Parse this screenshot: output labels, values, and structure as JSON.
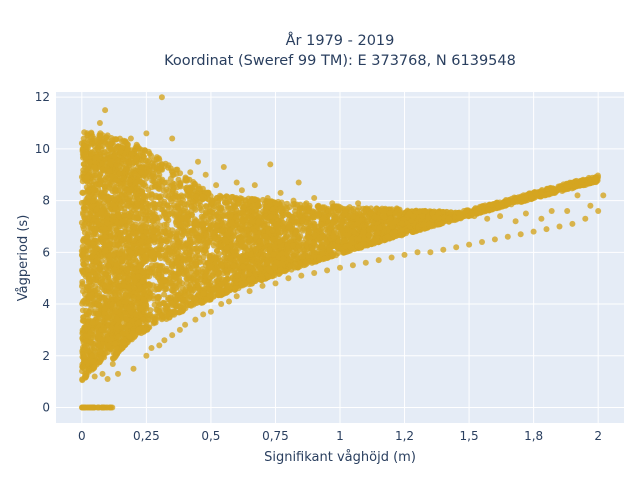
{
  "chart_data": {
    "type": "scatter",
    "title_lines": [
      "År 1979 - 2019",
      "Koordinat (Sweref 99 TM): E 373768, N 6139548"
    ],
    "xlabel": "Signifikant våghöjd (m)",
    "ylabel": "Vågperiod (s)",
    "xlim": [
      -0.1,
      2.1
    ],
    "ylim": [
      -0.6,
      12.2
    ],
    "x_ticks": [
      0,
      0.25,
      0.5,
      0.75,
      1,
      1.25,
      1.5,
      1.75,
      2
    ],
    "x_tick_labels": [
      "0",
      "0,25",
      "0,5",
      "0,75",
      "1",
      "1,2",
      "1,5",
      "1,8",
      "2"
    ],
    "y_ticks": [
      0,
      2,
      4,
      6,
      8,
      10,
      12
    ],
    "y_tick_labels": [
      "0",
      "2",
      "4",
      "6",
      "8",
      "10",
      "12"
    ],
    "grid": true,
    "marker_color": "#d4a520",
    "background_color": "#e5ecf6",
    "series": [
      {
        "points": [
          [
            0.01,
            1.5
          ],
          [
            0.02,
            2.3
          ],
          [
            0.02,
            6.6
          ],
          [
            0.03,
            8.6
          ],
          [
            0.03,
            4.7
          ],
          [
            0.04,
            2.0
          ],
          [
            0.05,
            9.3
          ],
          [
            0.05,
            1.2
          ],
          [
            0.06,
            7.2
          ],
          [
            0.06,
            10.0
          ],
          [
            0.07,
            10.5
          ],
          [
            0.07,
            11.0
          ],
          [
            0.08,
            1.3
          ],
          [
            0.08,
            3.0
          ],
          [
            0.09,
            9.6
          ],
          [
            0.09,
            11.5
          ],
          [
            0.1,
            1.1
          ],
          [
            0.1,
            8.0
          ],
          [
            0.11,
            10.2
          ],
          [
            0.12,
            4.0
          ],
          [
            0.13,
            7.7
          ],
          [
            0.14,
            1.3
          ],
          [
            0.15,
            9.9
          ],
          [
            0.16,
            2.5
          ],
          [
            0.17,
            9.5
          ],
          [
            0.18,
            5.0
          ],
          [
            0.19,
            10.4
          ],
          [
            0.2,
            1.5
          ],
          [
            0.21,
            3.6
          ],
          [
            0.22,
            10.0
          ],
          [
            0.23,
            9.1
          ],
          [
            0.25,
            2.0
          ],
          [
            0.25,
            10.6
          ],
          [
            0.26,
            8.2
          ],
          [
            0.27,
            2.3
          ],
          [
            0.28,
            9.3
          ],
          [
            0.3,
            2.4
          ],
          [
            0.3,
            9.0
          ],
          [
            0.31,
            12.0
          ],
          [
            0.32,
            2.6
          ],
          [
            0.33,
            8.7
          ],
          [
            0.35,
            10.4
          ],
          [
            0.35,
            2.8
          ],
          [
            0.37,
            9.2
          ],
          [
            0.38,
            3.0
          ],
          [
            0.4,
            8.8
          ],
          [
            0.4,
            3.2
          ],
          [
            0.42,
            9.1
          ],
          [
            0.44,
            3.4
          ],
          [
            0.45,
            9.5
          ],
          [
            0.47,
            3.6
          ],
          [
            0.48,
            9.0
          ],
          [
            0.5,
            3.7
          ],
          [
            0.52,
            8.6
          ],
          [
            0.54,
            4.0
          ],
          [
            0.55,
            9.3
          ],
          [
            0.57,
            4.1
          ],
          [
            0.6,
            8.7
          ],
          [
            0.6,
            4.3
          ],
          [
            0.62,
            8.4
          ],
          [
            0.65,
            4.5
          ],
          [
            0.67,
            8.6
          ],
          [
            0.7,
            4.7
          ],
          [
            0.72,
            8.1
          ],
          [
            0.73,
            9.4
          ],
          [
            0.75,
            4.8
          ],
          [
            0.77,
            8.3
          ],
          [
            0.8,
            5.0
          ],
          [
            0.82,
            8.0
          ],
          [
            0.84,
            8.7
          ],
          [
            0.85,
            5.1
          ],
          [
            0.87,
            7.9
          ],
          [
            0.9,
            5.2
          ],
          [
            0.9,
            8.1
          ],
          [
            0.92,
            7.7
          ],
          [
            0.95,
            5.3
          ],
          [
            0.97,
            7.9
          ],
          [
            1.0,
            5.4
          ],
          [
            1.02,
            7.6
          ],
          [
            1.05,
            5.5
          ],
          [
            1.07,
            7.9
          ],
          [
            1.1,
            5.6
          ],
          [
            1.12,
            7.7
          ],
          [
            1.15,
            5.7
          ],
          [
            1.17,
            7.6
          ],
          [
            1.2,
            5.8
          ],
          [
            1.22,
            7.7
          ],
          [
            1.25,
            5.9
          ],
          [
            1.27,
            7.5
          ],
          [
            1.3,
            6.0
          ],
          [
            1.32,
            7.4
          ],
          [
            1.35,
            6.0
          ],
          [
            1.38,
            7.5
          ],
          [
            1.4,
            6.1
          ],
          [
            1.42,
            7.3
          ],
          [
            1.45,
            6.2
          ],
          [
            1.48,
            7.6
          ],
          [
            1.5,
            6.3
          ],
          [
            1.52,
            7.4
          ],
          [
            1.55,
            6.4
          ],
          [
            1.57,
            7.3
          ],
          [
            1.6,
            6.5
          ],
          [
            1.62,
            7.4
          ],
          [
            1.65,
            6.6
          ],
          [
            1.68,
            7.2
          ],
          [
            1.7,
            6.7
          ],
          [
            1.72,
            7.5
          ],
          [
            1.75,
            6.8
          ],
          [
            1.78,
            7.3
          ],
          [
            1.8,
            6.9
          ],
          [
            1.82,
            7.6
          ],
          [
            1.85,
            7.0
          ],
          [
            1.88,
            7.6
          ],
          [
            1.9,
            7.1
          ],
          [
            1.92,
            8.2
          ],
          [
            1.95,
            7.3
          ],
          [
            1.97,
            7.8
          ],
          [
            2.0,
            7.6
          ],
          [
            2.02,
            8.2
          ]
        ]
      }
    ]
  }
}
